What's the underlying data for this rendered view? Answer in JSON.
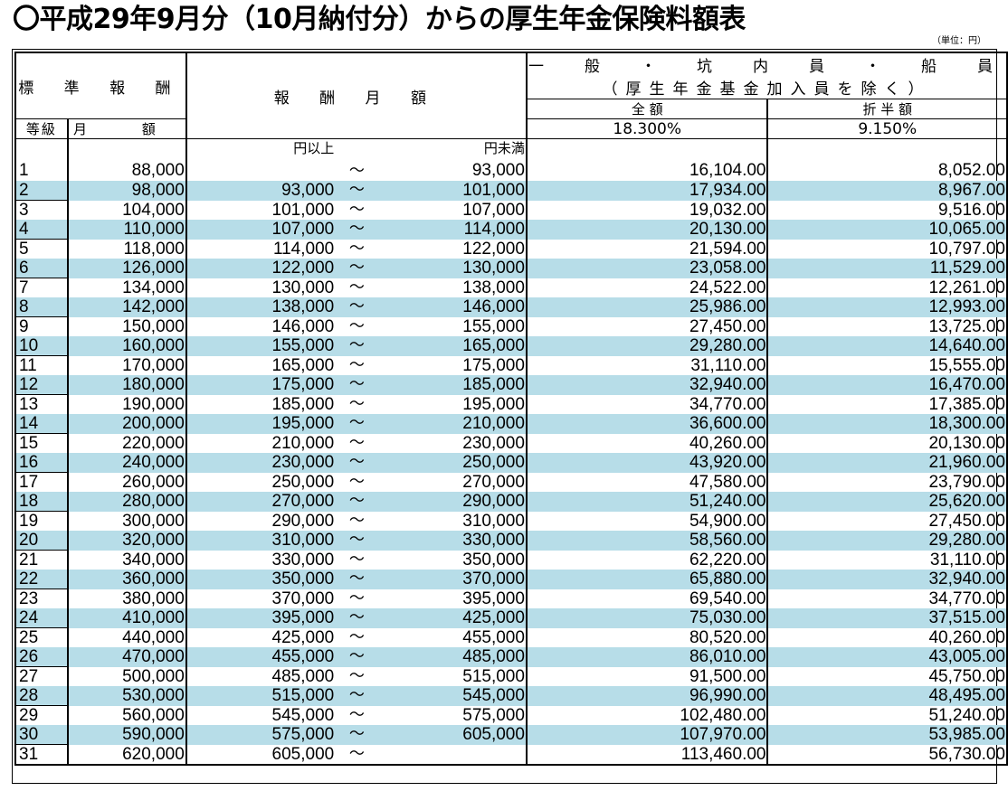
{
  "title": "〇平成29年9月分（10月納付分）からの厚生年金保険料額表",
  "unit": "（単位：円）",
  "header": {
    "standard": "標 準 報 酬",
    "remuneration": "報 酬 月 額",
    "category": "一　般　・　坑　内　員　・　船　員",
    "category_note": "（厚生年金基金加入員を除く）",
    "full": "全 額",
    "half": "折 半 額",
    "grade": "等級",
    "monthly": "月 額",
    "full_rate": "18.300%",
    "half_rate": "9.150%",
    "from_label": "円以上",
    "to_label": "円未満"
  },
  "tilde": "～",
  "rows": [
    {
      "grade": "1",
      "monthly": "88,000",
      "from": "",
      "to": "93,000",
      "full": "16,104.00",
      "half": "8,052.00"
    },
    {
      "grade": "2",
      "monthly": "98,000",
      "from": "93,000",
      "to": "101,000",
      "full": "17,934.00",
      "half": "8,967.00"
    },
    {
      "grade": "3",
      "monthly": "104,000",
      "from": "101,000",
      "to": "107,000",
      "full": "19,032.00",
      "half": "9,516.00"
    },
    {
      "grade": "4",
      "monthly": "110,000",
      "from": "107,000",
      "to": "114,000",
      "full": "20,130.00",
      "half": "10,065.00"
    },
    {
      "grade": "5",
      "monthly": "118,000",
      "from": "114,000",
      "to": "122,000",
      "full": "21,594.00",
      "half": "10,797.00"
    },
    {
      "grade": "6",
      "monthly": "126,000",
      "from": "122,000",
      "to": "130,000",
      "full": "23,058.00",
      "half": "11,529.00"
    },
    {
      "grade": "7",
      "monthly": "134,000",
      "from": "130,000",
      "to": "138,000",
      "full": "24,522.00",
      "half": "12,261.00"
    },
    {
      "grade": "8",
      "monthly": "142,000",
      "from": "138,000",
      "to": "146,000",
      "full": "25,986.00",
      "half": "12,993.00"
    },
    {
      "grade": "9",
      "monthly": "150,000",
      "from": "146,000",
      "to": "155,000",
      "full": "27,450.00",
      "half": "13,725.00"
    },
    {
      "grade": "10",
      "monthly": "160,000",
      "from": "155,000",
      "to": "165,000",
      "full": "29,280.00",
      "half": "14,640.00"
    },
    {
      "grade": "11",
      "monthly": "170,000",
      "from": "165,000",
      "to": "175,000",
      "full": "31,110.00",
      "half": "15,555.00"
    },
    {
      "grade": "12",
      "monthly": "180,000",
      "from": "175,000",
      "to": "185,000",
      "full": "32,940.00",
      "half": "16,470.00"
    },
    {
      "grade": "13",
      "monthly": "190,000",
      "from": "185,000",
      "to": "195,000",
      "full": "34,770.00",
      "half": "17,385.00"
    },
    {
      "grade": "14",
      "monthly": "200,000",
      "from": "195,000",
      "to": "210,000",
      "full": "36,600.00",
      "half": "18,300.00"
    },
    {
      "grade": "15",
      "monthly": "220,000",
      "from": "210,000",
      "to": "230,000",
      "full": "40,260.00",
      "half": "20,130.00"
    },
    {
      "grade": "16",
      "monthly": "240,000",
      "from": "230,000",
      "to": "250,000",
      "full": "43,920.00",
      "half": "21,960.00"
    },
    {
      "grade": "17",
      "monthly": "260,000",
      "from": "250,000",
      "to": "270,000",
      "full": "47,580.00",
      "half": "23,790.00"
    },
    {
      "grade": "18",
      "monthly": "280,000",
      "from": "270,000",
      "to": "290,000",
      "full": "51,240.00",
      "half": "25,620.00"
    },
    {
      "grade": "19",
      "monthly": "300,000",
      "from": "290,000",
      "to": "310,000",
      "full": "54,900.00",
      "half": "27,450.00"
    },
    {
      "grade": "20",
      "monthly": "320,000",
      "from": "310,000",
      "to": "330,000",
      "full": "58,560.00",
      "half": "29,280.00"
    },
    {
      "grade": "21",
      "monthly": "340,000",
      "from": "330,000",
      "to": "350,000",
      "full": "62,220.00",
      "half": "31,110.00"
    },
    {
      "grade": "22",
      "monthly": "360,000",
      "from": "350,000",
      "to": "370,000",
      "full": "65,880.00",
      "half": "32,940.00"
    },
    {
      "grade": "23",
      "monthly": "380,000",
      "from": "370,000",
      "to": "395,000",
      "full": "69,540.00",
      "half": "34,770.00"
    },
    {
      "grade": "24",
      "monthly": "410,000",
      "from": "395,000",
      "to": "425,000",
      "full": "75,030.00",
      "half": "37,515.00"
    },
    {
      "grade": "25",
      "monthly": "440,000",
      "from": "425,000",
      "to": "455,000",
      "full": "80,520.00",
      "half": "40,260.00"
    },
    {
      "grade": "26",
      "monthly": "470,000",
      "from": "455,000",
      "to": "485,000",
      "full": "86,010.00",
      "half": "43,005.00"
    },
    {
      "grade": "27",
      "monthly": "500,000",
      "from": "485,000",
      "to": "515,000",
      "full": "91,500.00",
      "half": "45,750.00"
    },
    {
      "grade": "28",
      "monthly": "530,000",
      "from": "515,000",
      "to": "545,000",
      "full": "96,990.00",
      "half": "48,495.00"
    },
    {
      "grade": "29",
      "monthly": "560,000",
      "from": "545,000",
      "to": "575,000",
      "full": "102,480.00",
      "half": "51,240.00"
    },
    {
      "grade": "30",
      "monthly": "590,000",
      "from": "575,000",
      "to": "605,000",
      "full": "107,970.00",
      "half": "53,985.00"
    },
    {
      "grade": "31",
      "monthly": "620,000",
      "from": "605,000",
      "to": "",
      "full": "113,460.00",
      "half": "56,730.00"
    }
  ],
  "colors": {
    "stripe": "#b7dde8",
    "line": "#000000"
  }
}
